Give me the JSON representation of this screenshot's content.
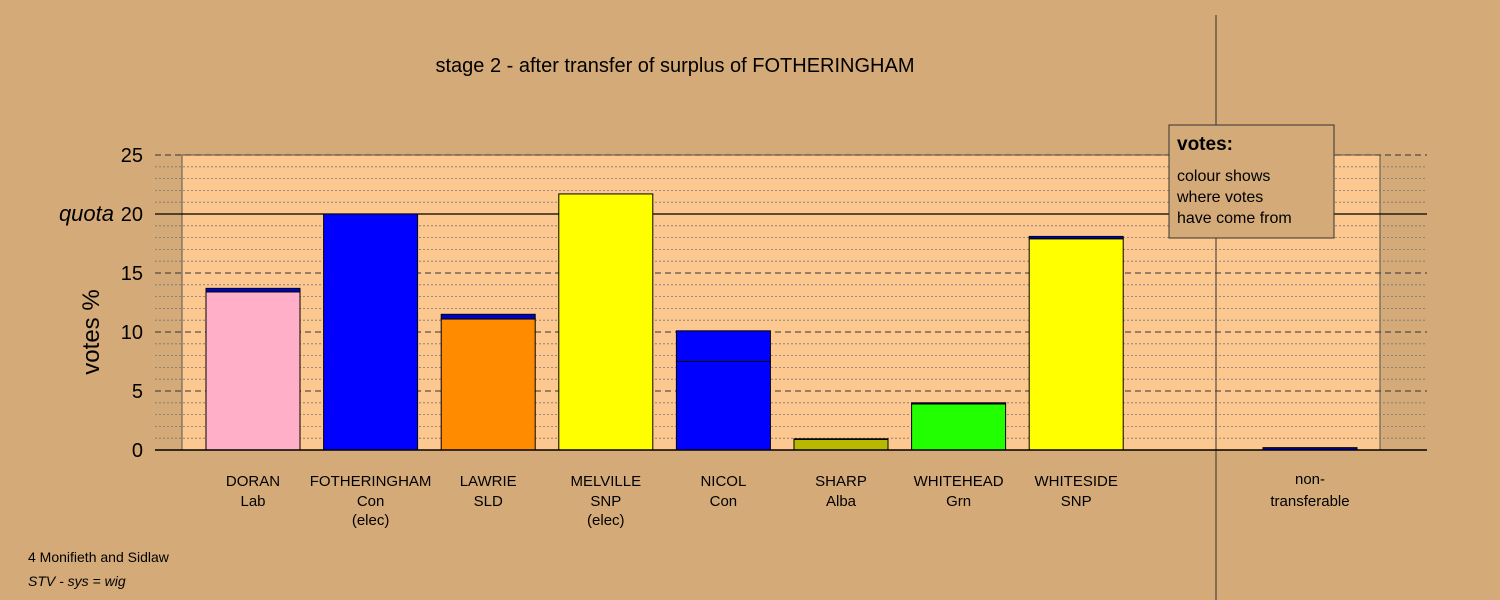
{
  "chart_data": {
    "type": "bar",
    "title": "stage 2 - after transfer of surplus of FOTHERINGHAM",
    "ylabel": "votes %",
    "ylim": [
      0,
      25
    ],
    "yticks": [
      0,
      5,
      10,
      15,
      20,
      25
    ],
    "quota": {
      "label": "quota",
      "value": 20
    },
    "candidates": [
      {
        "name": "DORAN",
        "party": "Lab",
        "note": "",
        "segments": [
          {
            "value": 13.4,
            "color": "#ffb0c8"
          },
          {
            "value": 0.3,
            "color": "#0000cc"
          }
        ]
      },
      {
        "name": "FOTHERINGHAM",
        "party": "Con",
        "note": "(elec)",
        "segments": [
          {
            "value": 20.0,
            "color": "#0000ff"
          }
        ]
      },
      {
        "name": "LAWRIE",
        "party": "SLD",
        "note": "",
        "segments": [
          {
            "value": 11.1,
            "color": "#ff8c00"
          },
          {
            "value": 0.4,
            "color": "#0000cc"
          }
        ]
      },
      {
        "name": "MELVILLE",
        "party": "SNP",
        "note": "(elec)",
        "segments": [
          {
            "value": 21.7,
            "color": "#ffff00"
          }
        ]
      },
      {
        "name": "NICOL",
        "party": "Con",
        "note": "",
        "segments": [
          {
            "value": 7.5,
            "color": "#0000ff"
          },
          {
            "value": 2.6,
            "color": "#0000ff"
          }
        ]
      },
      {
        "name": "SHARP",
        "party": "Alba",
        "note": "",
        "segments": [
          {
            "value": 0.9,
            "color": "#b8b800"
          },
          {
            "value": 0.05,
            "color": "#0000cc"
          }
        ]
      },
      {
        "name": "WHITEHEAD",
        "party": "Grn",
        "note": "",
        "segments": [
          {
            "value": 3.9,
            "color": "#22ff00"
          },
          {
            "value": 0.1,
            "color": "#0000cc"
          }
        ]
      },
      {
        "name": "WHITESIDE",
        "party": "SNP",
        "note": "",
        "segments": [
          {
            "value": 17.9,
            "color": "#ffff00"
          },
          {
            "value": 0.2,
            "color": "#0000cc"
          }
        ]
      }
    ],
    "nontransferable": {
      "label_line1": "non-",
      "label_line2": "transferable",
      "value": 0.2,
      "color": "#0000cc"
    },
    "legend": {
      "title": "votes:",
      "lines": [
        "colour shows",
        "where votes",
        "have come from"
      ]
    }
  },
  "footer": {
    "line1": "4 Monifieth and Sidlaw",
    "line2": "STV - sys = wig"
  }
}
